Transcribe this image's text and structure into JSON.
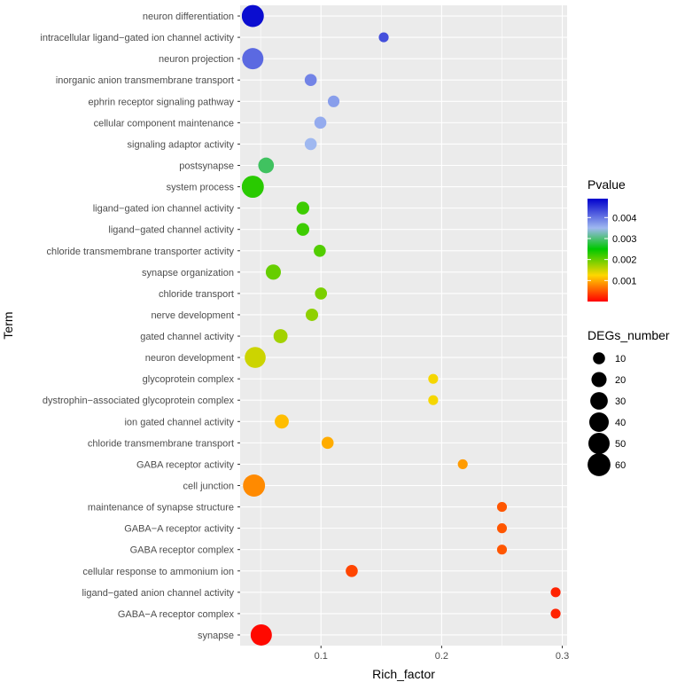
{
  "chart_data": {
    "type": "scatter",
    "xlabel": "Rich_factor",
    "ylabel": "Term",
    "xlim": [
      0.033,
      0.304
    ],
    "x_ticks": [
      {
        "value": 0.1,
        "label": "0.1"
      },
      {
        "value": 0.2,
        "label": "0.2"
      },
      {
        "value": 0.3,
        "label": "0.3"
      }
    ],
    "terms": [
      {
        "term": "neuron differentiation",
        "rich_factor": 0.0435,
        "pvalue": 0.0048,
        "degs": 55
      },
      {
        "term": "intracellular ligand−gated ion channel activity",
        "rich_factor": 0.152,
        "pvalue": 0.0043,
        "degs": 5
      },
      {
        "term": "neuron projection",
        "rich_factor": 0.0435,
        "pvalue": 0.0041,
        "degs": 50
      },
      {
        "term": "inorganic anion transmembrane transport",
        "rich_factor": 0.0915,
        "pvalue": 0.0039,
        "degs": 10
      },
      {
        "term": "ephrin receptor signaling pathway",
        "rich_factor": 0.1105,
        "pvalue": 0.0037,
        "degs": 9
      },
      {
        "term": "cellular component maintenance",
        "rich_factor": 0.0995,
        "pvalue": 0.0036,
        "degs": 10
      },
      {
        "term": "signaling adaptor activity",
        "rich_factor": 0.0915,
        "pvalue": 0.0035,
        "degs": 10
      },
      {
        "term": "postsynapse",
        "rich_factor": 0.0545,
        "pvalue": 0.0029,
        "degs": 22
      },
      {
        "term": "system process",
        "rich_factor": 0.0435,
        "pvalue": 0.0023,
        "degs": 55
      },
      {
        "term": "ligand−gated ion channel activity",
        "rich_factor": 0.085,
        "pvalue": 0.0022,
        "degs": 12
      },
      {
        "term": "ligand−gated channel activity",
        "rich_factor": 0.085,
        "pvalue": 0.0022,
        "degs": 12
      },
      {
        "term": "chloride transmembrane transporter activity",
        "rich_factor": 0.099,
        "pvalue": 0.0021,
        "degs": 10
      },
      {
        "term": "synapse organization",
        "rich_factor": 0.0605,
        "pvalue": 0.002,
        "degs": 20
      },
      {
        "term": "chloride transport",
        "rich_factor": 0.1,
        "pvalue": 0.0019,
        "degs": 10
      },
      {
        "term": "nerve development",
        "rich_factor": 0.0925,
        "pvalue": 0.0018,
        "degs": 11
      },
      {
        "term": "gated channel activity",
        "rich_factor": 0.0665,
        "pvalue": 0.0017,
        "degs": 16
      },
      {
        "term": "neuron development",
        "rich_factor": 0.0455,
        "pvalue": 0.0015,
        "degs": 48
      },
      {
        "term": "glycoprotein complex",
        "rich_factor": 0.193,
        "pvalue": 0.0013,
        "degs": 5
      },
      {
        "term": "dystrophin−associated glycoprotein complex",
        "rich_factor": 0.193,
        "pvalue": 0.0013,
        "degs": 5
      },
      {
        "term": "ion gated channel activity",
        "rich_factor": 0.0675,
        "pvalue": 0.0011,
        "degs": 16
      },
      {
        "term": "chloride transmembrane transport",
        "rich_factor": 0.1055,
        "pvalue": 0.001,
        "degs": 10
      },
      {
        "term": "GABA receptor activity",
        "rich_factor": 0.2175,
        "pvalue": 0.0009,
        "degs": 5
      },
      {
        "term": "cell junction",
        "rich_factor": 0.0445,
        "pvalue": 0.0008,
        "degs": 55
      },
      {
        "term": "maintenance of synapse structure",
        "rich_factor": 0.25,
        "pvalue": 0.0005,
        "degs": 5
      },
      {
        "term": "GABA−A receptor activity",
        "rich_factor": 0.25,
        "pvalue": 0.0005,
        "degs": 5
      },
      {
        "term": "GABA receptor complex",
        "rich_factor": 0.25,
        "pvalue": 0.0005,
        "degs": 5
      },
      {
        "term": "cellular response to ammonium ion",
        "rich_factor": 0.1255,
        "pvalue": 0.0004,
        "degs": 10
      },
      {
        "term": "ligand−gated anion channel activity",
        "rich_factor": 0.2945,
        "pvalue": 0.0002,
        "degs": 5
      },
      {
        "term": "GABA−A receptor complex",
        "rich_factor": 0.2945,
        "pvalue": 0.0002,
        "degs": 5
      },
      {
        "term": "synapse",
        "rich_factor": 0.0505,
        "pvalue": 5e-05,
        "degs": 50
      }
    ],
    "color_legend": {
      "title": "Pvalue",
      "min": 0.0,
      "max": 0.0049,
      "ticks": [
        {
          "value": 0.004,
          "label": "0.004"
        },
        {
          "value": 0.003,
          "label": "0.003"
        },
        {
          "value": 0.002,
          "label": "0.002"
        },
        {
          "value": 0.001,
          "label": "0.001"
        }
      ],
      "stops": [
        {
          "value": 0.0,
          "color": "#ff0000"
        },
        {
          "value": 0.00125,
          "color": "#ffd700"
        },
        {
          "value": 0.0025,
          "color": "#00c800"
        },
        {
          "value": 0.0035,
          "color": "#9fb8f0"
        },
        {
          "value": 0.0049,
          "color": "#0000cd"
        }
      ]
    },
    "size_legend": {
      "title": "DEGs_number",
      "entries": [
        {
          "value": 10,
          "label": "10"
        },
        {
          "value": 20,
          "label": "20"
        },
        {
          "value": 30,
          "label": "30"
        },
        {
          "value": 40,
          "label": "40"
        },
        {
          "value": 50,
          "label": "50"
        },
        {
          "value": 60,
          "label": "60"
        }
      ]
    },
    "panel_background": "#ebebeb",
    "grid_color": "#ffffff"
  }
}
